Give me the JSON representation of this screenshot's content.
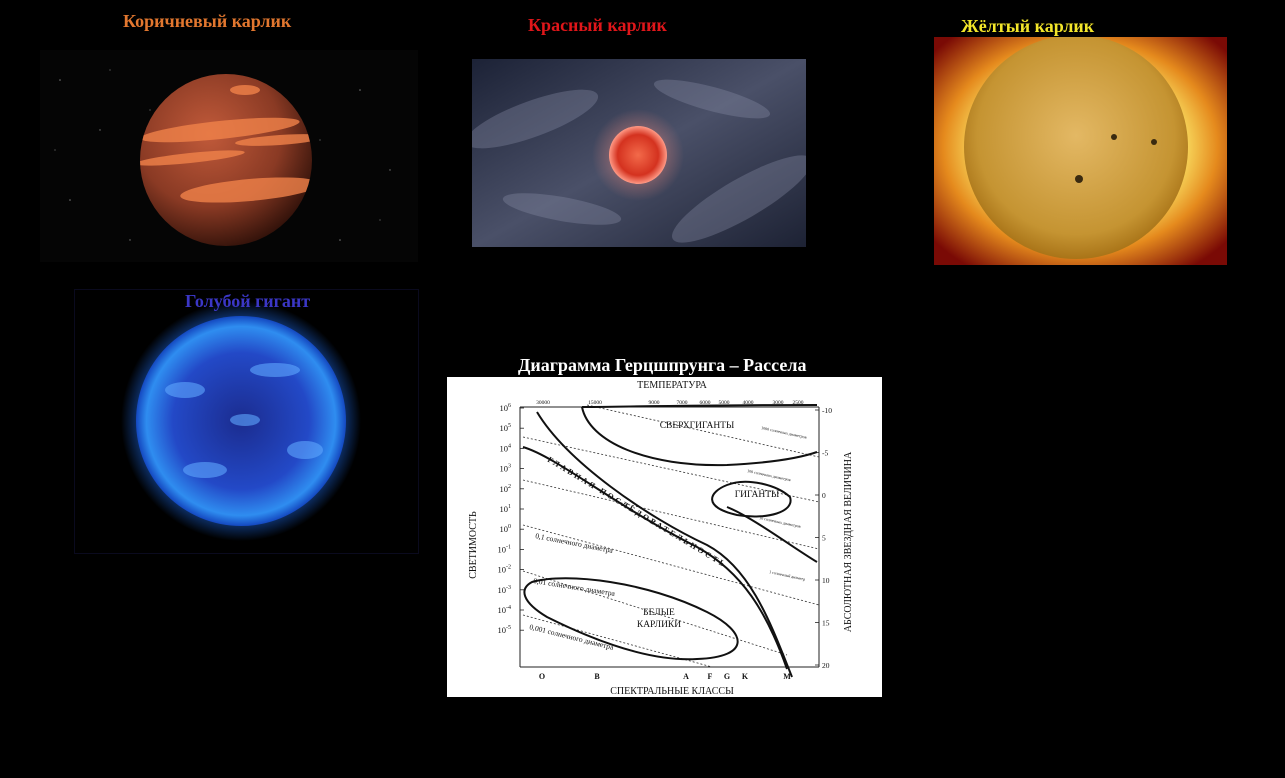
{
  "colors": {
    "background": "#000000",
    "brown": "#e2772f",
    "red": "#e0161a",
    "yellow": "#f3e62a",
    "blue": "#3b37c6",
    "white": "#ffffff"
  },
  "panels": {
    "brown_dwarf": {
      "title": "Коричневый карлик",
      "icon": "brown-dwarf-image"
    },
    "red_dwarf": {
      "title": "Красный карлик",
      "icon": "red-dwarf-image"
    },
    "yellow_dwarf": {
      "title": "Жёлтый карлик",
      "icon": "sun-image"
    },
    "blue_giant": {
      "title": "Голубой гигант",
      "icon": "blue-giant-image"
    }
  },
  "diagram": {
    "title": "Диаграмма Герцшпрунга – Рассела",
    "top_label": "ТЕМПЕРАТУРА",
    "bottom_label": "СПЕКТРАЛЬНЫЕ КЛАССЫ",
    "left_label": "СВЕТИМОСТЬ",
    "right_label": "АБСОЛЮТНАЯ ЗВЕЗДНАЯ ВЕЛИЧИНА",
    "temperatures": [
      "30000",
      "15000",
      "9000",
      "7000",
      "6000",
      "5000",
      "4000",
      "3000",
      "2500"
    ],
    "luminosity_ticks": [
      "10^6",
      "10^5",
      "10^4",
      "10^3",
      "10^2",
      "10^1",
      "10^0",
      "10^-1",
      "10^-2",
      "10^-3",
      "10^-4",
      "10^-5"
    ],
    "magnitude_ticks": [
      "-10",
      "-5",
      "0",
      "5",
      "10",
      "15",
      "20"
    ],
    "spectral_classes": [
      "O",
      "B",
      "A",
      "F",
      "G",
      "K",
      "M"
    ],
    "regions": {
      "supergiants": "СВЕРХГИГАНТЫ",
      "giants": "ГИГАНТЫ",
      "main_sequence": "ГЛАВНАЯ ПОСЛЕДОВАТЕЛЬНОСТЬ",
      "white_dwarfs_1": "БЕЛЫЕ",
      "white_dwarfs_2": "КАРЛИКИ"
    },
    "diameters": {
      "d01": "0,1 солнечного диаметра",
      "d001": "0,01 солнечного диаметра",
      "d0001": "0,001 солнечного диаметра",
      "d1000": "1000 солнечных диаметров",
      "d100": "100 солнечных диаметров",
      "d10": "10 солнечных диаметров",
      "d1": "1 солнечный диаметр"
    }
  }
}
